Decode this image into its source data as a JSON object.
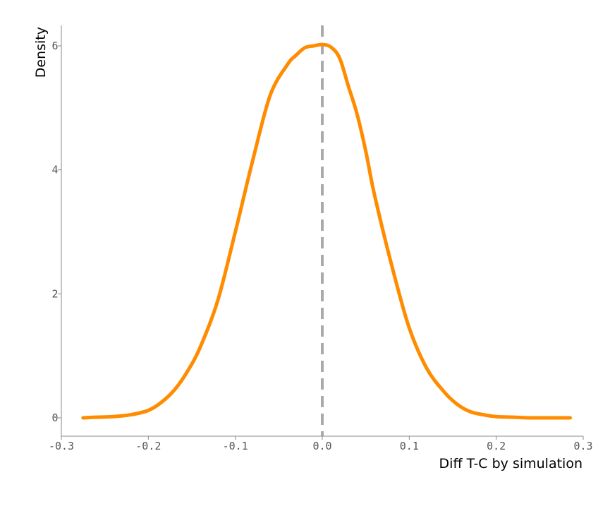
{
  "chart_data": {
    "type": "line",
    "title": "",
    "xlabel": "Diff T-C by simulation",
    "ylabel": "Density",
    "xlim": [
      -0.3,
      0.3
    ],
    "ylim": [
      0,
      6.3
    ],
    "x_ticks": [
      -0.3,
      -0.2,
      -0.1,
      0.0,
      0.1,
      0.2,
      0.3
    ],
    "x_tick_labels": [
      "-0.3",
      "-0.2",
      "-0.1",
      "0.0",
      "0.1",
      "0.2",
      "0.3"
    ],
    "y_ticks": [
      0,
      2,
      4,
      6
    ],
    "y_tick_labels": [
      "0",
      "2",
      "4",
      "6"
    ],
    "grid": false,
    "reference_line": {
      "x": 0.0,
      "style": "dashed",
      "color": "#aaaaaa"
    },
    "series": [
      {
        "color": "#ff8c00",
        "x": [
          -0.275,
          -0.26,
          -0.24,
          -0.22,
          -0.2,
          -0.185,
          -0.17,
          -0.155,
          -0.14,
          -0.12,
          -0.1,
          -0.08,
          -0.06,
          -0.04,
          -0.03,
          -0.02,
          -0.01,
          0.0,
          0.01,
          0.02,
          0.03,
          0.04,
          0.05,
          0.06,
          0.08,
          0.1,
          0.12,
          0.14,
          0.155,
          0.17,
          0.185,
          0.2,
          0.22,
          0.24,
          0.26,
          0.285
        ],
        "y": [
          0.0,
          0.01,
          0.02,
          0.05,
          0.12,
          0.25,
          0.45,
          0.75,
          1.15,
          1.9,
          3.0,
          4.15,
          5.2,
          5.7,
          5.85,
          5.97,
          6.0,
          6.02,
          5.98,
          5.8,
          5.35,
          4.9,
          4.3,
          3.6,
          2.45,
          1.45,
          0.8,
          0.42,
          0.22,
          0.1,
          0.05,
          0.02,
          0.01,
          0.0,
          0.0,
          0.0
        ]
      }
    ]
  }
}
